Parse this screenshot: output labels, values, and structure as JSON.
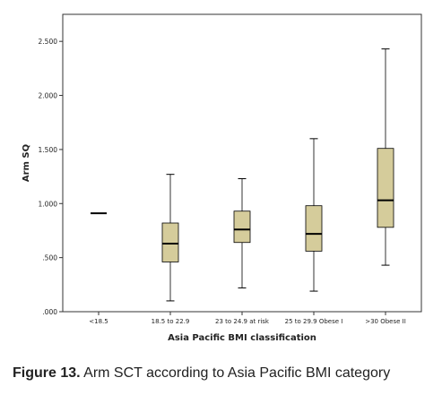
{
  "chart_data": {
    "type": "boxplot",
    "xlabel": "Asia Pacific BMI classification",
    "ylabel": "Arm SQ",
    "ylim": [
      0,
      2.75
    ],
    "yticks": [
      {
        "value": 0,
        "label": ".000"
      },
      {
        "value": 0.5,
        "label": ".500"
      },
      {
        "value": 1.0,
        "label": "1.000"
      },
      {
        "value": 1.5,
        "label": "1.500"
      },
      {
        "value": 2.0,
        "label": "2.000"
      },
      {
        "value": 2.5,
        "label": "2.500"
      }
    ],
    "categories": [
      "<18.5",
      "18.5 to 22.9",
      "23 to 24.9 at risk",
      "25 to 29.9 Obese I",
      ">30 Obese II"
    ],
    "boxes": [
      {
        "min": 0.91,
        "q1": 0.91,
        "median": 0.91,
        "q3": 0.91,
        "max": 0.91
      },
      {
        "min": 0.1,
        "q1": 0.46,
        "median": 0.63,
        "q3": 0.82,
        "max": 1.27
      },
      {
        "min": 0.22,
        "q1": 0.64,
        "median": 0.76,
        "q3": 0.93,
        "max": 1.23
      },
      {
        "min": 0.19,
        "q1": 0.56,
        "median": 0.72,
        "q3": 0.98,
        "max": 1.6
      },
      {
        "min": 0.43,
        "q1": 0.78,
        "median": 1.03,
        "q3": 1.51,
        "max": 2.43
      }
    ],
    "grid": false,
    "colors": {
      "box_fill": "#d5cc9b",
      "box_stroke": "#000000",
      "axis": "#333333"
    }
  },
  "caption": {
    "label": "Figure 13.",
    "text": " Arm SCT according to Asia Pacific BMI category"
  }
}
